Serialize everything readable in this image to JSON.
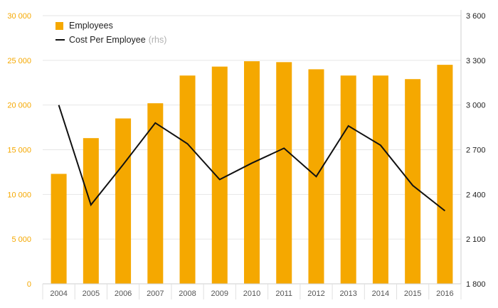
{
  "chart_data": {
    "type": "bar+line",
    "categories": [
      "2004",
      "2005",
      "2006",
      "2007",
      "2008",
      "2009",
      "2010",
      "2011",
      "2012",
      "2013",
      "2014",
      "2015",
      "2016"
    ],
    "series": [
      {
        "name": "Employees",
        "type": "bar",
        "axis": "left",
        "color": "#f5a800",
        "values": [
          12300,
          16300,
          18500,
          20200,
          23300,
          24300,
          24900,
          24800,
          24000,
          23300,
          23300,
          22900,
          24500
        ]
      },
      {
        "name": "Cost Per Employee",
        "type": "line",
        "axis": "right",
        "color": "#111111",
        "values": [
          3000,
          2330,
          2600,
          2880,
          2740,
          2500,
          2610,
          2710,
          2520,
          2860,
          2730,
          2460,
          2290
        ]
      }
    ],
    "left_axis": {
      "ticks": [
        0,
        5000,
        10000,
        15000,
        20000,
        25000,
        30000
      ],
      "tick_labels": [
        "0",
        "5 000",
        "10 000",
        "15 000",
        "20 000",
        "25 000",
        "30 000"
      ],
      "ylim": [
        0,
        30000
      ],
      "color": "#f5a800"
    },
    "right_axis": {
      "ticks": [
        1800,
        2100,
        2400,
        2700,
        3000,
        3300,
        3600
      ],
      "tick_labels": [
        "1 800",
        "2 100",
        "2 400",
        "2 700",
        "3 000",
        "3 300",
        "3 600"
      ],
      "ylim": [
        1800,
        3600
      ],
      "color": "#222222"
    },
    "grid": true,
    "legend_position": "top-left",
    "legend_note": "(rhs)"
  }
}
